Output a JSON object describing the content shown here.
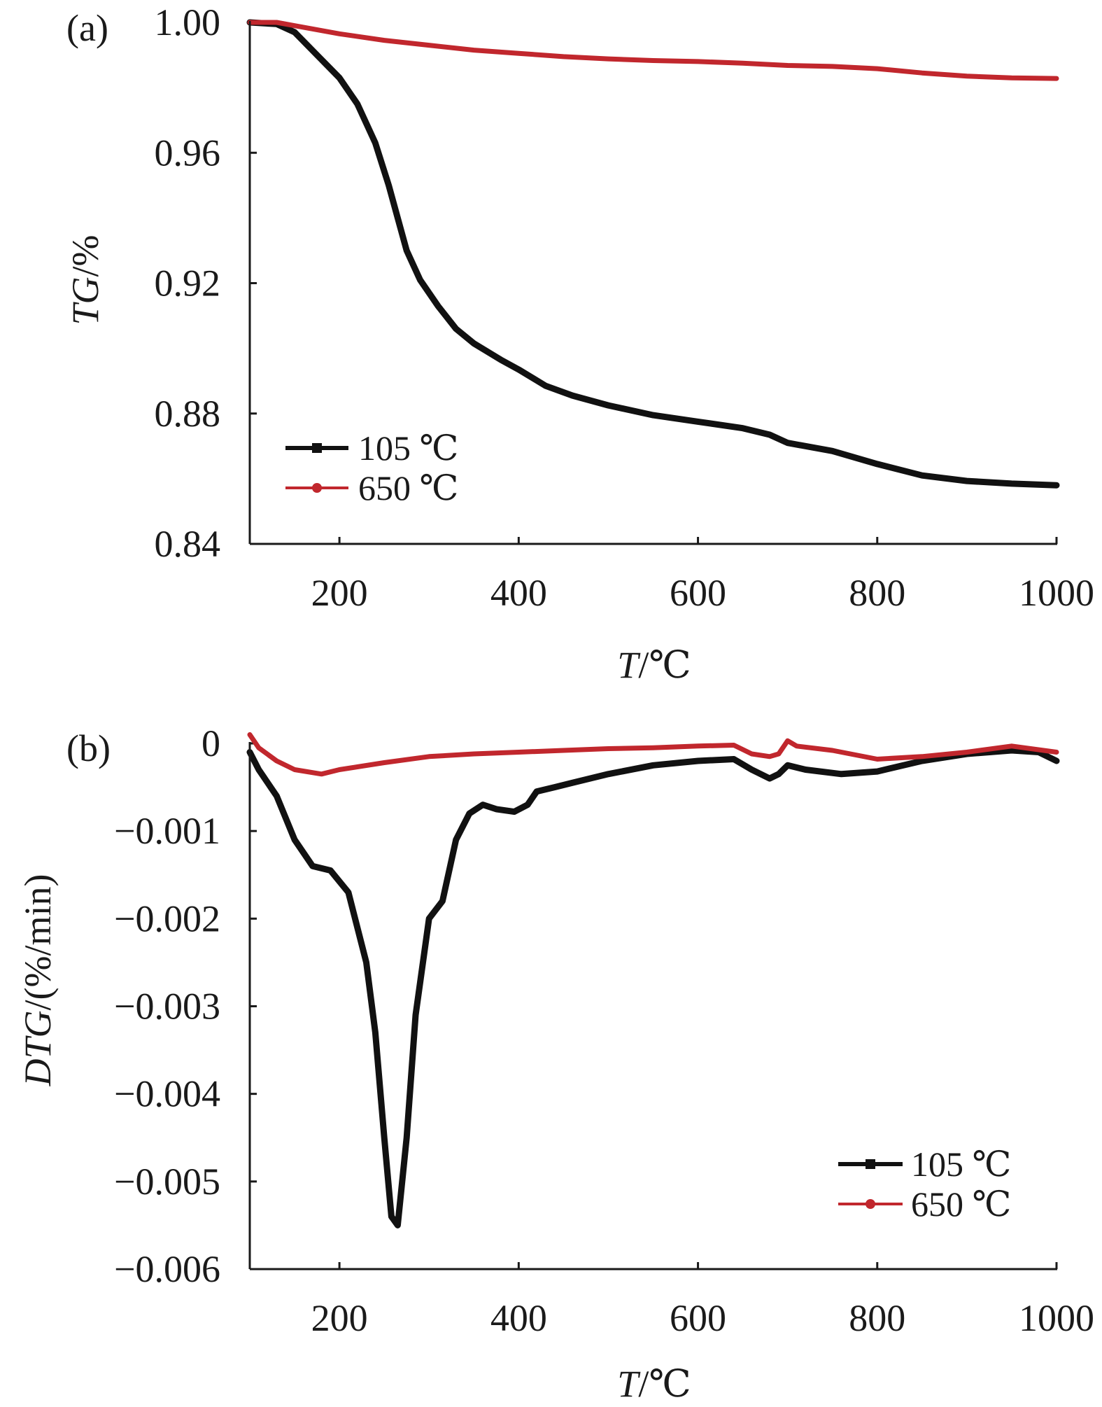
{
  "colors": {
    "series_105": "#111111",
    "series_650": "#c1272d"
  },
  "chart_data": [
    {
      "panel": "(a)",
      "type": "line",
      "xlabel_italic": "T",
      "xlabel_rest": "/℃",
      "ylabel_italic": "TG",
      "ylabel_rest": "/%",
      "xlim": [
        100,
        1000
      ],
      "ylim": [
        0.84,
        1.0
      ],
      "x_ticks": [
        200,
        400,
        600,
        800,
        1000
      ],
      "x_tick_labels": [
        "200",
        "400",
        "600",
        "800",
        "1000"
      ],
      "y_ticks": [
        0.84,
        0.88,
        0.92,
        0.96,
        1.0
      ],
      "y_tick_labels": [
        "0.84",
        "0.88",
        "0.92",
        "0.96",
        "1.00"
      ],
      "grid": false,
      "legend_position": "bottom-left",
      "series": [
        {
          "name": "105 ℃",
          "color": "#111111",
          "x": [
            100,
            130,
            150,
            175,
            200,
            220,
            240,
            255,
            265,
            275,
            290,
            310,
            330,
            350,
            380,
            400,
            430,
            460,
            500,
            550,
            600,
            650,
            680,
            700,
            750,
            800,
            850,
            900,
            950,
            1000
          ],
          "y": [
            1.0,
            0.9995,
            0.997,
            0.99,
            0.983,
            0.975,
            0.963,
            0.95,
            0.94,
            0.93,
            0.921,
            0.913,
            0.906,
            0.9015,
            0.8965,
            0.8935,
            0.8885,
            0.8855,
            0.8825,
            0.8795,
            0.8775,
            0.8755,
            0.8735,
            0.871,
            0.8685,
            0.8645,
            0.861,
            0.8593,
            0.8585,
            0.858
          ]
        },
        {
          "name": "650 ℃",
          "color": "#c1272d",
          "x": [
            100,
            130,
            150,
            200,
            250,
            300,
            350,
            400,
            450,
            500,
            550,
            600,
            650,
            700,
            750,
            800,
            850,
            900,
            950,
            1000
          ],
          "y": [
            1.0,
            1.0,
            0.999,
            0.9965,
            0.9945,
            0.993,
            0.9915,
            0.9905,
            0.9895,
            0.9888,
            0.9883,
            0.988,
            0.9875,
            0.9868,
            0.9865,
            0.9858,
            0.9845,
            0.9835,
            0.983,
            0.9828
          ]
        }
      ]
    },
    {
      "panel": "(b)",
      "type": "line",
      "xlabel_italic": "T",
      "xlabel_rest": "/℃",
      "ylabel_italic": "DTG",
      "ylabel_rest": "/(%/min)",
      "xlim": [
        100,
        1000
      ],
      "ylim": [
        -0.006,
        0
      ],
      "x_ticks": [
        200,
        400,
        600,
        800,
        1000
      ],
      "x_tick_labels": [
        "200",
        "400",
        "600",
        "800",
        "1000"
      ],
      "y_ticks": [
        0,
        -0.001,
        -0.002,
        -0.003,
        -0.004,
        -0.005,
        -0.006
      ],
      "y_tick_labels": [
        "0",
        "−0.001",
        "−0.002",
        "−0.003",
        "−0.004",
        "−0.005",
        "−0.006"
      ],
      "grid": false,
      "legend_position": "bottom-right",
      "series": [
        {
          "name": "105 ℃",
          "color": "#111111",
          "x": [
            100,
            110,
            130,
            150,
            170,
            190,
            210,
            230,
            240,
            250,
            258,
            265,
            275,
            285,
            300,
            315,
            330,
            345,
            360,
            375,
            395,
            410,
            420,
            440,
            460,
            500,
            550,
            600,
            640,
            660,
            680,
            690,
            700,
            720,
            760,
            800,
            850,
            900,
            950,
            980,
            1000
          ],
          "y": [
            -0.0001,
            -0.0003,
            -0.0006,
            -0.0011,
            -0.0014,
            -0.00145,
            -0.0017,
            -0.0025,
            -0.0033,
            -0.0045,
            -0.0054,
            -0.0055,
            -0.0045,
            -0.0031,
            -0.002,
            -0.0018,
            -0.0011,
            -0.0008,
            -0.0007,
            -0.00075,
            -0.00078,
            -0.0007,
            -0.00055,
            -0.0005,
            -0.00045,
            -0.00035,
            -0.00025,
            -0.0002,
            -0.00018,
            -0.0003,
            -0.0004,
            -0.00035,
            -0.00025,
            -0.0003,
            -0.00035,
            -0.00032,
            -0.0002,
            -0.00012,
            -8e-05,
            -0.0001,
            -0.0002
          ]
        },
        {
          "name": "650 ℃",
          "color": "#c1272d",
          "x": [
            100,
            110,
            130,
            150,
            180,
            200,
            250,
            300,
            350,
            400,
            450,
            500,
            550,
            600,
            640,
            660,
            680,
            690,
            700,
            710,
            750,
            800,
            850,
            900,
            950,
            1000
          ],
          "y": [
            0.0001,
            -5e-05,
            -0.0002,
            -0.0003,
            -0.00035,
            -0.0003,
            -0.00022,
            -0.00015,
            -0.00012,
            -0.0001,
            -8e-05,
            -6e-05,
            -5e-05,
            -3e-05,
            -2e-05,
            -0.00012,
            -0.00015,
            -0.00012,
            3e-05,
            -3e-05,
            -8e-05,
            -0.00018,
            -0.00015,
            -0.0001,
            -3e-05,
            -0.0001
          ]
        }
      ]
    }
  ]
}
